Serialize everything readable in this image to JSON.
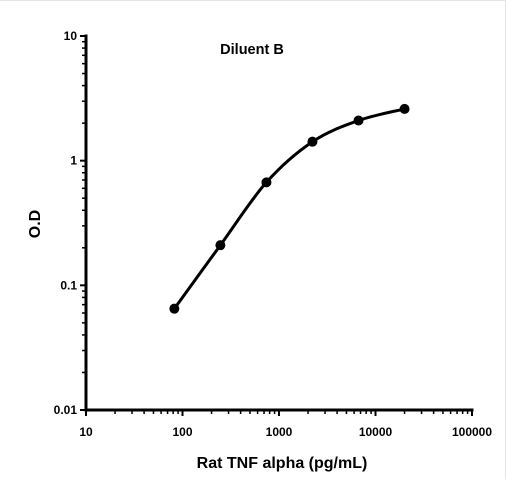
{
  "chart_data": {
    "type": "line",
    "title": "Diluent B",
    "xlabel": "Rat TNF alpha (pg/mL)",
    "ylabel": "O.D",
    "x_scale": "log",
    "y_scale": "log",
    "xlim": [
      10,
      100000
    ],
    "ylim": [
      0.01,
      10
    ],
    "x_ticks": [
      "10",
      "100",
      "1000",
      "10000",
      "100000"
    ],
    "y_ticks": [
      "0.01",
      "0.1",
      "1",
      "10"
    ],
    "grid": false,
    "legend": "none",
    "series": [
      {
        "x": [
          82.3,
          247,
          741,
          2222,
          6667,
          20000
        ],
        "y": [
          0.065,
          0.21,
          0.67,
          1.42,
          2.1,
          2.6
        ]
      }
    ],
    "colors": {
      "line": "#000000",
      "marker": "#000000"
    }
  }
}
